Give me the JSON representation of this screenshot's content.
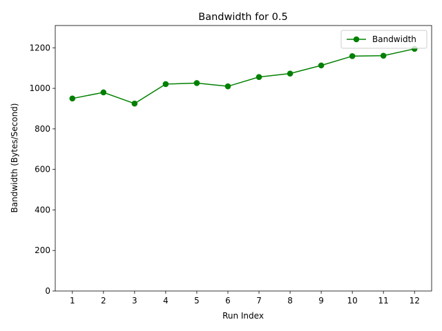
{
  "chart_data": {
    "type": "line",
    "title": "Bandwidth for 0.5",
    "xlabel": "Run Index",
    "ylabel": "Bandwidth (Bytes/Second)",
    "x": [
      1,
      2,
      3,
      4,
      5,
      6,
      7,
      8,
      9,
      10,
      11,
      12
    ],
    "xticks": [
      "1",
      "2",
      "3",
      "4",
      "5",
      "6",
      "7",
      "8",
      "9",
      "10",
      "11",
      "12"
    ],
    "xlim": [
      0.45,
      12.55
    ],
    "ylim": [
      0,
      1310
    ],
    "yticks": [
      0,
      200,
      400,
      600,
      800,
      1000,
      1200
    ],
    "grid": false,
    "legend_position": "top-right",
    "series": [
      {
        "name": "Bandwidth",
        "color": "#008000",
        "marker": "circle",
        "values": [
          950,
          980,
          925,
          1021,
          1026,
          1010,
          1056,
          1073,
          1113,
          1159,
          1161,
          1195
        ]
      }
    ]
  }
}
